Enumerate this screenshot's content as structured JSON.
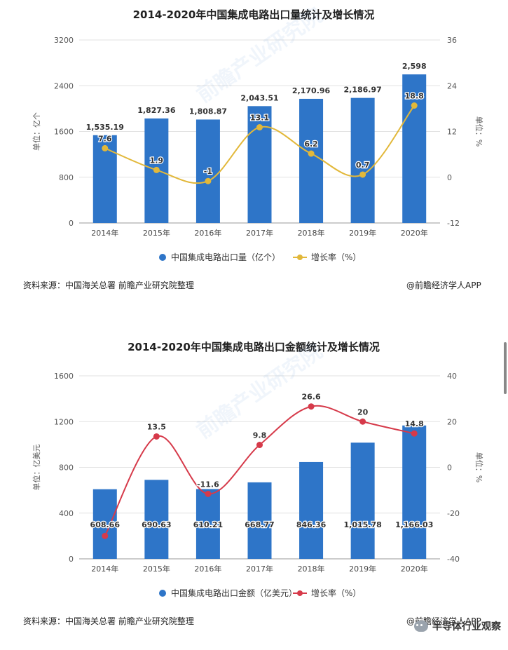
{
  "chart_data": [
    {
      "type": "bar+line",
      "title": "2014-2020年中国集成电路出口量统计及增长情况",
      "categories": [
        "2014年",
        "2015年",
        "2016年",
        "2017年",
        "2018年",
        "2019年",
        "2020年"
      ],
      "bar_series": {
        "name": "中国集成电路出口量（亿个）",
        "values": [
          1535.19,
          1827.36,
          1808.87,
          2043.51,
          2170.96,
          2186.97,
          2598
        ],
        "labels": [
          "1,535.19",
          "1,827.36",
          "1,808.87",
          "2,043.51",
          "2,170.96",
          "2,186.97",
          "2,598"
        ]
      },
      "line_series": {
        "name": "增长率（%）",
        "values": [
          7.6,
          1.9,
          -1,
          13.1,
          6.2,
          0.7,
          18.8
        ],
        "labels": [
          "7.6",
          "1.9",
          "-1",
          "13.1",
          "6.2",
          "0.7",
          "18.8"
        ]
      },
      "ylabel": "单位：亿个",
      "y2label": "单位：%",
      "ylim": [
        0,
        3200
      ],
      "y2lim": [
        -12,
        36
      ],
      "yticks": [
        "0",
        "800",
        "1600",
        "2400",
        "3200"
      ],
      "y2ticks": [
        "-12",
        "0",
        "12",
        "24",
        "36"
      ],
      "bar_color": "#2e75c8",
      "line_color": "#e2b83a"
    },
    {
      "type": "bar+line",
      "title": "2014-2020年中国集成电路出口金额统计及增长情况",
      "categories": [
        "2014年",
        "2015年",
        "2016年",
        "2017年",
        "2018年",
        "2019年",
        "2020年"
      ],
      "bar_series": {
        "name": "中国集成电路出口金额（亿美元）",
        "values": [
          608.66,
          690.63,
          610.21,
          668.77,
          846.36,
          1015.78,
          1166.03
        ],
        "labels": [
          "608.66",
          "690.63",
          "610.21",
          "668.77",
          "846.36",
          "1,015.78",
          "1,166.03"
        ]
      },
      "line_series": {
        "name": "增长率（%）",
        "values": [
          -30,
          13.5,
          -11.6,
          9.8,
          26.6,
          20,
          14.8
        ],
        "labels": [
          "",
          "13.5",
          "-11.6",
          "9.8",
          "26.6",
          "20",
          "14.8"
        ]
      },
      "ylabel": "单位：亿美元",
      "y2label": "单位：%",
      "ylim": [
        0,
        1600
      ],
      "y2lim": [
        -40,
        40
      ],
      "yticks": [
        "0",
        "400",
        "800",
        "1200",
        "1600"
      ],
      "y2ticks": [
        "-40",
        "-20",
        "0",
        "20",
        "40"
      ],
      "bar_color": "#2e75c8",
      "line_color": "#d63a4a"
    }
  ],
  "footer": {
    "source": "资料来源：中国海关总署 前瞻产业研究院整理",
    "brand": "@前瞻经济学人APP"
  },
  "watermark": "前瞻产业研究院",
  "wechat_account": "半导体行业观察"
}
